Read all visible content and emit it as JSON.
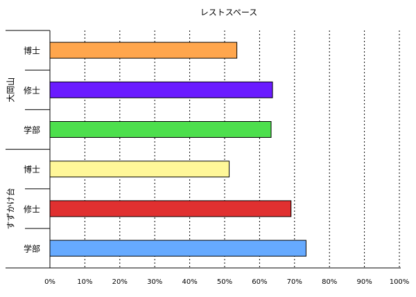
{
  "chart_data": {
    "type": "bar",
    "orientation": "horizontal",
    "title": "レストスペース",
    "xlim": [
      0,
      100
    ],
    "x_ticks": [
      "0%",
      "10%",
      "20%",
      "30%",
      "40%",
      "50%",
      "60%",
      "70%",
      "80%",
      "90%",
      "100%"
    ],
    "grid": "vertical dotted",
    "groups": [
      {
        "label": "大岡山",
        "bars": [
          {
            "label": "博士",
            "value": 53.5,
            "color": "#ffa64d"
          },
          {
            "label": "修士",
            "value": 63.7,
            "color": "#6a1bff"
          },
          {
            "label": "学部",
            "value": 63.3,
            "color": "#4ddf4d"
          }
        ]
      },
      {
        "label": "すずかけ台",
        "bars": [
          {
            "label": "博士",
            "value": 51.3,
            "color": "#fff799"
          },
          {
            "label": "修士",
            "value": 69.0,
            "color": "#e03030"
          },
          {
            "label": "学部",
            "value": 73.3,
            "color": "#66aaff"
          }
        ]
      }
    ]
  }
}
